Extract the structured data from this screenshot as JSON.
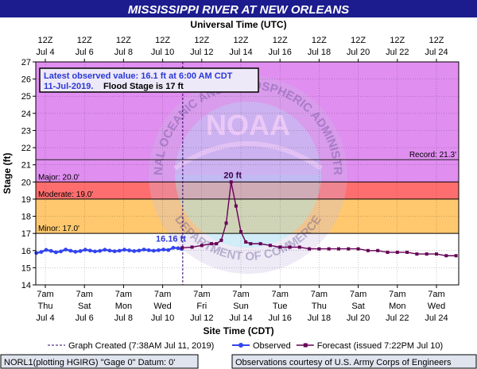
{
  "chart_data": {
    "type": "line",
    "title": "MISSISSIPPI RIVER AT NEW ORLEANS",
    "top_axis_label": "Universal Time (UTC)",
    "xlabel": "Site Time (CDT)",
    "ylabel": "Stage (ft)",
    "ylim": [
      14,
      27
    ],
    "y_ticks": [
      14,
      15,
      16,
      17,
      18,
      19,
      20,
      21,
      22,
      23,
      24,
      25,
      26,
      27
    ],
    "x_range_days": [
      "2019-07-03",
      "2019-07-25"
    ],
    "bottom_ticks": [
      {
        "line1": "7am",
        "line2": "Thu",
        "line3": "Jul 4"
      },
      {
        "line1": "7am",
        "line2": "Sat",
        "line3": "Jul 6"
      },
      {
        "line1": "7am",
        "line2": "Mon",
        "line3": "Jul 8"
      },
      {
        "line1": "7am",
        "line2": "Wed",
        "line3": "Jul 10"
      },
      {
        "line1": "7am",
        "line2": "Fri",
        "line3": "Jul 12"
      },
      {
        "line1": "7am",
        "line2": "Sun",
        "line3": "Jul 14"
      },
      {
        "line1": "7am",
        "line2": "Tue",
        "line3": "Jul 16"
      },
      {
        "line1": "7am",
        "line2": "Thu",
        "line3": "Jul 18"
      },
      {
        "line1": "7am",
        "line2": "Sat",
        "line3": "Jul 20"
      },
      {
        "line1": "7am",
        "line2": "Mon",
        "line3": "Jul 22"
      },
      {
        "line1": "7am",
        "line2": "Wed",
        "line3": "Jul 24"
      }
    ],
    "top_ticks": [
      {
        "line1": "12Z",
        "line2": "Jul 4"
      },
      {
        "line1": "12Z",
        "line2": "Jul 6"
      },
      {
        "line1": "12Z",
        "line2": "Jul 8"
      },
      {
        "line1": "12Z",
        "line2": "Jul 10"
      },
      {
        "line1": "12Z",
        "line2": "Jul 12"
      },
      {
        "line1": "12Z",
        "line2": "Jul 14"
      },
      {
        "line1": "12Z",
        "line2": "Jul 16"
      },
      {
        "line1": "12Z",
        "line2": "Jul 18"
      },
      {
        "line1": "12Z",
        "line2": "Jul 20"
      },
      {
        "line1": "12Z",
        "line2": "Jul 22"
      },
      {
        "line1": "12Z",
        "line2": "Jul 24"
      }
    ],
    "flood_categories": [
      {
        "name": "Minor",
        "label": "Minor: 17.0'",
        "from": 17,
        "to": 19,
        "color": "#ffc86e"
      },
      {
        "name": "Moderate",
        "label": "Moderate: 19.0'",
        "from": 19,
        "to": 20,
        "color": "#ff6e6e"
      },
      {
        "name": "Major",
        "label": "Major: 20.0'",
        "from": 20,
        "to": 27,
        "color": "#e08ef0"
      }
    ],
    "record": {
      "label": "Record: 21.3'",
      "value": 21.3
    },
    "graph_created": "2019-07-11 07:38",
    "annotations": {
      "latest_line1": "Latest observed value: 16.1 ft at 6:00 AM CDT",
      "latest_line2_date": "11-Jul-2019.",
      "latest_line2_flood": "Flood Stage is 17 ft",
      "last_obs_label": "16.16 ft",
      "last_obs_value": 16.16,
      "peak_label": "20 ft",
      "peak_value": 20
    },
    "series": [
      {
        "name": "Observed",
        "color": "#3344ee",
        "points": [
          [
            "2019-07-03 20:00",
            15.86
          ],
          [
            "2019-07-04 02:00",
            15.92
          ],
          [
            "2019-07-04 08:00",
            16.04
          ],
          [
            "2019-07-04 14:00",
            15.98
          ],
          [
            "2019-07-04 20:00",
            15.9
          ],
          [
            "2019-07-05 02:00",
            15.95
          ],
          [
            "2019-07-05 08:00",
            16.06
          ],
          [
            "2019-07-05 14:00",
            15.99
          ],
          [
            "2019-07-05 20:00",
            15.93
          ],
          [
            "2019-07-06 02:00",
            15.97
          ],
          [
            "2019-07-06 08:00",
            16.05
          ],
          [
            "2019-07-06 14:00",
            16.0
          ],
          [
            "2019-07-06 20:00",
            15.95
          ],
          [
            "2019-07-07 02:00",
            15.98
          ],
          [
            "2019-07-07 08:00",
            16.05
          ],
          [
            "2019-07-07 14:00",
            16.0
          ],
          [
            "2019-07-07 20:00",
            15.96
          ],
          [
            "2019-07-08 02:00",
            15.99
          ],
          [
            "2019-07-08 08:00",
            16.05
          ],
          [
            "2019-07-08 14:00",
            16.01
          ],
          [
            "2019-07-08 20:00",
            15.97
          ],
          [
            "2019-07-09 02:00",
            16.0
          ],
          [
            "2019-07-09 08:00",
            16.06
          ],
          [
            "2019-07-09 14:00",
            16.02
          ],
          [
            "2019-07-09 20:00",
            15.99
          ],
          [
            "2019-07-10 02:00",
            16.02
          ],
          [
            "2019-07-10 08:00",
            16.06
          ],
          [
            "2019-07-10 14:00",
            16.03
          ],
          [
            "2019-07-10 20:00",
            16.16
          ],
          [
            "2019-07-11 02:00",
            16.14
          ],
          [
            "2019-07-11 06:00",
            16.1
          ]
        ]
      },
      {
        "name": "Forecast (issued 7:22PM Jul 10)",
        "color": "#660055",
        "points": [
          [
            "2019-07-11 07:00",
            16.16
          ],
          [
            "2019-07-11 19:00",
            16.2
          ],
          [
            "2019-07-12 07:00",
            16.3
          ],
          [
            "2019-07-12 19:00",
            16.4
          ],
          [
            "2019-07-13 01:00",
            16.4
          ],
          [
            "2019-07-13 07:00",
            16.6
          ],
          [
            "2019-07-13 13:00",
            17.6
          ],
          [
            "2019-07-13 19:00",
            20.0
          ],
          [
            "2019-07-14 01:00",
            18.6
          ],
          [
            "2019-07-14 07:00",
            17.1
          ],
          [
            "2019-07-14 13:00",
            16.5
          ],
          [
            "2019-07-14 19:00",
            16.4
          ],
          [
            "2019-07-15 07:00",
            16.4
          ],
          [
            "2019-07-15 19:00",
            16.3
          ],
          [
            "2019-07-16 07:00",
            16.2
          ],
          [
            "2019-07-16 19:00",
            16.2
          ],
          [
            "2019-07-17 07:00",
            16.2
          ],
          [
            "2019-07-17 19:00",
            16.1
          ],
          [
            "2019-07-18 07:00",
            16.1
          ],
          [
            "2019-07-18 19:00",
            16.1
          ],
          [
            "2019-07-19 07:00",
            16.1
          ],
          [
            "2019-07-19 19:00",
            16.1
          ],
          [
            "2019-07-20 07:00",
            16.1
          ],
          [
            "2019-07-20 19:00",
            16.0
          ],
          [
            "2019-07-21 07:00",
            16.0
          ],
          [
            "2019-07-21 19:00",
            15.9
          ],
          [
            "2019-07-22 07:00",
            15.9
          ],
          [
            "2019-07-22 19:00",
            15.9
          ],
          [
            "2019-07-23 07:00",
            15.8
          ],
          [
            "2019-07-23 19:00",
            15.8
          ],
          [
            "2019-07-24 07:00",
            15.8
          ],
          [
            "2019-07-24 19:00",
            15.7
          ],
          [
            "2019-07-25 07:00",
            15.7
          ]
        ]
      }
    ],
    "legend": {
      "position": "bottom",
      "items": [
        {
          "label": "Graph Created (7:38AM Jul 11, 2019)",
          "style": "dashed",
          "color": "#330066"
        },
        {
          "label": "Observed",
          "style": "line-dot",
          "color": "#3344ee"
        },
        {
          "label": "Forecast (issued 7:22PM Jul 10)",
          "style": "line-square",
          "color": "#660055"
        }
      ]
    },
    "footer": {
      "left": "NORL1(plotting HGIRG) \"Gage 0\" Datum: 0'",
      "right": "Observations courtesy of U.S. Army Corps of Engineers"
    },
    "watermark": {
      "outer_text": "NATIONAL OCEANIC AND ATMOSPHERIC ADMINISTRATION",
      "inner_text": "NOAA",
      "bottom_text": "DEPARTMENT OF COMMERCE"
    },
    "colors": {
      "title_bar": "#1c1c8e",
      "title_text": "#ffffff",
      "plot_bg": "#ffffff",
      "record_line": "#222222",
      "grid": "#000000",
      "page_bg": "#ffffff",
      "footer_bg": "#dfe4ee"
    }
  }
}
